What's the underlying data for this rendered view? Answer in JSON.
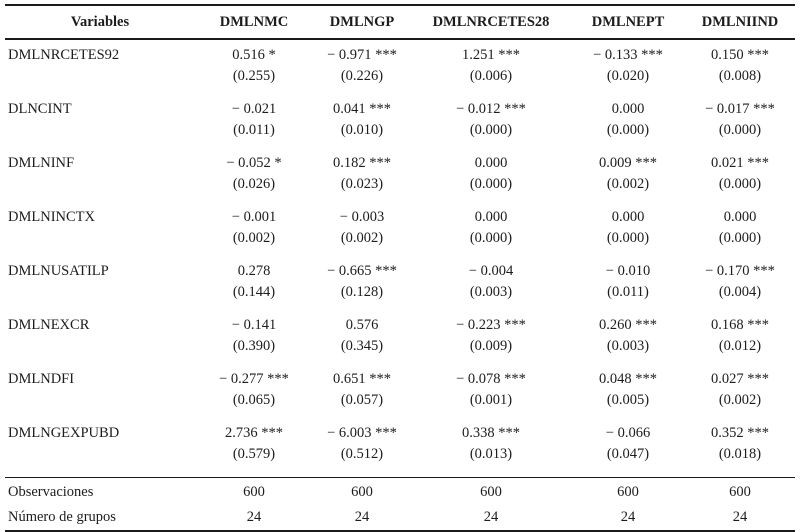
{
  "colors": {
    "text": "#1c1c1c",
    "rule": "#1a1a1a",
    "background": "#ffffff"
  },
  "table": {
    "columns": [
      "Variables",
      "DMLNMC",
      "DMLNGP",
      "DMLNRCETES28",
      "DMLNEPT",
      "DMLNIIND"
    ],
    "rows": [
      {
        "variable": "DMLNRCETES92",
        "cells": [
          {
            "coef": "0.516 *",
            "se": "(0.255)"
          },
          {
            "coef": "− 0.971 ***",
            "se": "(0.226)"
          },
          {
            "coef": "1.251 ***",
            "se": "(0.006)"
          },
          {
            "coef": "− 0.133 ***",
            "se": "(0.020)"
          },
          {
            "coef": "0.150 ***",
            "se": "(0.008)"
          }
        ]
      },
      {
        "variable": "DLNCINT",
        "cells": [
          {
            "coef": "− 0.021",
            "se": "(0.011)"
          },
          {
            "coef": "0.041 ***",
            "se": "(0.010)"
          },
          {
            "coef": "− 0.012 ***",
            "se": "(0.000)"
          },
          {
            "coef": "0.000",
            "se": "(0.000)"
          },
          {
            "coef": "− 0.017 ***",
            "se": "(0.000)"
          }
        ]
      },
      {
        "variable": "DMLNINF",
        "cells": [
          {
            "coef": "− 0.052 *",
            "se": "(0.026)"
          },
          {
            "coef": "0.182 ***",
            "se": "(0.023)"
          },
          {
            "coef": "0.000",
            "se": "(0.000)"
          },
          {
            "coef": "0.009 ***",
            "se": "(0.002)"
          },
          {
            "coef": "0.021 ***",
            "se": "(0.000)"
          }
        ]
      },
      {
        "variable": "DMLNINCTX",
        "cells": [
          {
            "coef": "− 0.001",
            "se": "(0.002)"
          },
          {
            "coef": "− 0.003",
            "se": "(0.002)"
          },
          {
            "coef": "0.000",
            "se": "(0.000)"
          },
          {
            "coef": "0.000",
            "se": "(0.000)"
          },
          {
            "coef": "0.000",
            "se": "(0.000)"
          }
        ]
      },
      {
        "variable": "DMLNUSATILP",
        "cells": [
          {
            "coef": "0.278",
            "se": "(0.144)"
          },
          {
            "coef": "− 0.665 ***",
            "se": "(0.128)"
          },
          {
            "coef": "− 0.004",
            "se": "(0.003)"
          },
          {
            "coef": "− 0.010",
            "se": "(0.011)"
          },
          {
            "coef": "− 0.170 ***",
            "se": "(0.004)"
          }
        ]
      },
      {
        "variable": "DMLNEXCR",
        "cells": [
          {
            "coef": "− 0.141",
            "se": "(0.390)"
          },
          {
            "coef": "0.576",
            "se": "(0.345)"
          },
          {
            "coef": "− 0.223 ***",
            "se": "(0.009)"
          },
          {
            "coef": "0.260 ***",
            "se": "(0.003)"
          },
          {
            "coef": "0.168 ***",
            "se": "(0.012)"
          }
        ]
      },
      {
        "variable": "DMLNDFI",
        "cells": [
          {
            "coef": "− 0.277 ***",
            "se": "(0.065)"
          },
          {
            "coef": "0.651 ***",
            "se": "(0.057)"
          },
          {
            "coef": "− 0.078 ***",
            "se": "(0.001)"
          },
          {
            "coef": "0.048 ***",
            "se": "(0.005)"
          },
          {
            "coef": "0.027 ***",
            "se": "(0.002)"
          }
        ]
      },
      {
        "variable": "DMLNGEXPUBD",
        "cells": [
          {
            "coef": "2.736 ***",
            "se": "(0.579)"
          },
          {
            "coef": "− 6.003 ***",
            "se": "(0.512)"
          },
          {
            "coef": "0.338 ***",
            "se": "(0.013)"
          },
          {
            "coef": "− 0.066",
            "se": "(0.047)"
          },
          {
            "coef": "0.352 ***",
            "se": "(0.018)"
          }
        ]
      }
    ],
    "footer": [
      {
        "label": "Observaciones",
        "values": [
          "600",
          "600",
          "600",
          "600",
          "600"
        ]
      },
      {
        "label": "Número de grupos",
        "values": [
          "24",
          "24",
          "24",
          "24",
          "24"
        ]
      }
    ]
  }
}
